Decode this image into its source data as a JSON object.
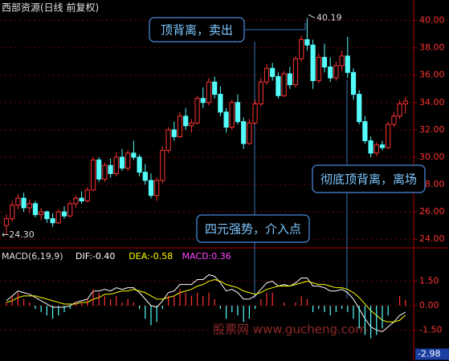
{
  "chart_data": [
    {
      "type": "candlestick",
      "title": "西部资源(日线 前复权)",
      "up_color": "#ff3232",
      "down_color": "#54fcfc",
      "ylim": [
        23.6,
        41.5
      ],
      "yticks": [
        {
          "value": 24,
          "label": "24.00"
        },
        {
          "value": 26,
          "label": "26.00"
        },
        {
          "value": 28,
          "label": "28.00"
        },
        {
          "value": 30,
          "label": "30.00"
        },
        {
          "value": 32,
          "label": "32.00"
        },
        {
          "value": 34,
          "label": "34.00"
        },
        {
          "value": 36,
          "label": "36.00"
        },
        {
          "value": 38,
          "label": "38.00"
        },
        {
          "value": 40,
          "label": "40.00"
        }
      ],
      "grid": true,
      "series": [
        {
          "open": [
            25.0,
            25.5,
            26.5,
            27.0,
            26.3,
            26.6,
            25.8,
            26.0,
            25.5,
            25.2,
            26.0,
            25.7,
            26.6,
            27.0,
            26.8,
            27.6,
            29.8,
            28.4,
            29.4,
            28.8,
            30.0,
            29.2,
            30.3,
            30.0,
            28.9,
            28.3,
            27.2,
            28.3,
            30.5,
            32.0,
            31.5,
            33.0,
            32.3,
            32.5,
            34.3,
            34.0,
            35.5,
            34.6,
            33.3,
            32.2,
            34.0,
            32.6,
            31.0,
            32.5,
            33.9,
            35.5,
            36.5,
            35.9,
            34.5,
            36.1,
            35.3,
            37.2,
            38.6,
            38.2,
            35.6,
            37.3,
            36.6,
            35.8,
            36.7,
            37.4,
            36.2,
            34.6,
            32.6,
            31.2,
            30.3,
            30.9,
            30.7,
            32.4,
            33.0,
            33.9
          ],
          "high": [
            25.8,
            26.8,
            27.3,
            27.4,
            26.9,
            26.8,
            26.3,
            26.1,
            25.9,
            26.2,
            26.4,
            26.8,
            27.2,
            27.5,
            27.8,
            30.0,
            30.0,
            29.6,
            29.9,
            30.4,
            30.6,
            30.5,
            31.2,
            30.2,
            29.5,
            28.8,
            28.5,
            30.8,
            32.2,
            32.6,
            33.3,
            33.6,
            32.8,
            34.5,
            35.1,
            35.8,
            35.9,
            35.2,
            33.6,
            34.2,
            34.6,
            32.9,
            32.8,
            34.2,
            35.8,
            36.8,
            36.9,
            36.2,
            36.3,
            36.6,
            37.4,
            38.9,
            40.19,
            38.6,
            37.6,
            38.3,
            37.3,
            37.0,
            37.8,
            38.8,
            36.5,
            34.9,
            33.0,
            31.5,
            31.1,
            31.2,
            32.6,
            33.3,
            34.2,
            34.4
          ],
          "low": [
            24.3,
            25.3,
            26.2,
            26.0,
            25.9,
            25.6,
            25.4,
            25.2,
            24.9,
            25.1,
            25.5,
            25.6,
            26.3,
            26.6,
            26.7,
            27.5,
            28.2,
            28.2,
            28.5,
            28.6,
            29.0,
            29.0,
            29.8,
            28.6,
            28.0,
            27.0,
            26.8,
            28.1,
            30.3,
            31.2,
            31.4,
            32.0,
            31.8,
            32.4,
            33.6,
            33.8,
            34.3,
            33.0,
            31.8,
            32.0,
            32.4,
            30.6,
            30.9,
            32.4,
            33.7,
            35.3,
            35.6,
            34.3,
            34.4,
            35.0,
            35.1,
            37.0,
            37.8,
            35.0,
            35.4,
            36.2,
            35.5,
            35.6,
            36.3,
            35.8,
            34.2,
            32.4,
            31.0,
            30.0,
            30.1,
            30.5,
            30.6,
            32.2,
            32.8,
            33.2
          ],
          "close": [
            25.5,
            26.5,
            27.0,
            26.3,
            26.6,
            25.8,
            26.0,
            25.5,
            25.2,
            26.0,
            25.7,
            26.6,
            27.0,
            26.8,
            27.6,
            29.8,
            28.4,
            29.4,
            28.8,
            30.0,
            29.2,
            30.3,
            30.0,
            28.9,
            28.3,
            27.2,
            28.3,
            30.5,
            32.0,
            31.5,
            33.0,
            32.3,
            32.5,
            34.3,
            34.0,
            35.5,
            34.6,
            33.3,
            32.2,
            34.0,
            32.6,
            31.0,
            32.5,
            33.9,
            35.5,
            36.5,
            35.9,
            34.5,
            36.1,
            35.3,
            37.2,
            38.6,
            38.2,
            35.6,
            37.3,
            36.6,
            35.8,
            36.7,
            37.4,
            36.2,
            34.6,
            32.6,
            31.2,
            30.3,
            30.9,
            30.7,
            32.4,
            33.0,
            33.9,
            34.1
          ]
        }
      ],
      "high_label": {
        "value": 40.19,
        "label": "40.19"
      },
      "low_label": {
        "value": 24.3,
        "label": "←24.30"
      },
      "annotations": [
        "顶背离，卖出",
        "彻底顶背离，离场",
        "四元强势，介入点"
      ]
    },
    {
      "type": "macd",
      "title": "MACD(6,19,9)",
      "ylim": [
        -3.4,
        3.4
      ],
      "yticks": [
        {
          "value": 1.5,
          "label": "1.50"
        },
        {
          "value": 0,
          "label": "0.00"
        },
        {
          "value": -1.5,
          "label": "-1.50"
        }
      ],
      "current_marker": -2.98,
      "series": [
        {
          "name": "DIF:-0.40",
          "color": "#ffffff",
          "values": [
            0.3,
            0.6,
            0.9,
            0.8,
            0.7,
            0.5,
            0.3,
            0.1,
            -0.1,
            -0.1,
            -0.1,
            0.0,
            0.2,
            0.3,
            0.4,
            0.9,
            0.9,
            1.0,
            0.9,
            1.1,
            1.0,
            1.1,
            1.1,
            0.8,
            0.4,
            0.0,
            -0.1,
            0.3,
            0.8,
            0.9,
            1.3,
            1.3,
            1.3,
            1.6,
            1.6,
            1.9,
            1.8,
            1.4,
            0.9,
            1.0,
            0.8,
            0.4,
            0.4,
            0.6,
            1.0,
            1.4,
            1.5,
            1.2,
            1.3,
            1.2,
            1.4,
            1.7,
            1.7,
            1.2,
            1.2,
            1.1,
            0.9,
            0.9,
            1.0,
            0.8,
            0.4,
            -0.2,
            -0.8,
            -1.3,
            -1.5,
            -1.6,
            -1.3,
            -1.0,
            -0.6,
            -0.4
          ]
        },
        {
          "name": "DEA:-0.58",
          "color": "#ffff00",
          "values": [
            0.2,
            0.3,
            0.5,
            0.6,
            0.6,
            0.6,
            0.5,
            0.4,
            0.3,
            0.2,
            0.1,
            0.1,
            0.1,
            0.2,
            0.2,
            0.4,
            0.5,
            0.7,
            0.7,
            0.8,
            0.9,
            0.9,
            1.0,
            0.9,
            0.8,
            0.6,
            0.4,
            0.4,
            0.5,
            0.6,
            0.8,
            0.9,
            1.0,
            1.2,
            1.3,
            1.5,
            1.6,
            1.5,
            1.3,
            1.2,
            1.1,
            0.9,
            0.8,
            0.7,
            0.8,
            1.0,
            1.1,
            1.2,
            1.2,
            1.2,
            1.3,
            1.4,
            1.5,
            1.4,
            1.3,
            1.3,
            1.2,
            1.1,
            1.1,
            1.0,
            0.8,
            0.5,
            0.1,
            -0.3,
            -0.6,
            -0.9,
            -1.0,
            -1.0,
            -0.9,
            -0.58
          ]
        },
        {
          "name": "MACD:0.36",
          "color": "#ff44ff",
          "up_color": "#ff3232",
          "down_color": "#54fcfc",
          "values": [
            0.2,
            0.6,
            0.8,
            0.4,
            0.2,
            -0.2,
            -0.4,
            -0.6,
            -0.8,
            -0.6,
            -0.4,
            -0.2,
            0.2,
            0.2,
            0.4,
            1.0,
            0.8,
            0.6,
            0.4,
            0.6,
            0.2,
            0.4,
            0.2,
            -0.2,
            -0.8,
            -1.2,
            -1.0,
            -0.2,
            0.6,
            0.6,
            1.0,
            0.8,
            0.6,
            0.8,
            0.6,
            0.8,
            0.4,
            -0.2,
            -0.8,
            -0.4,
            -0.6,
            -1.0,
            -0.8,
            -0.2,
            0.4,
            0.8,
            0.8,
            0.0,
            0.2,
            0.0,
            0.2,
            0.6,
            0.4,
            -0.4,
            -0.2,
            -0.4,
            -0.6,
            -0.4,
            -0.2,
            -0.4,
            -0.8,
            -1.4,
            -1.8,
            -2.0,
            -1.8,
            -1.4,
            -0.6,
            0.0,
            0.6,
            0.36
          ]
        }
      ]
    }
  ],
  "watermark": "股票网 www.gucheng.com"
}
